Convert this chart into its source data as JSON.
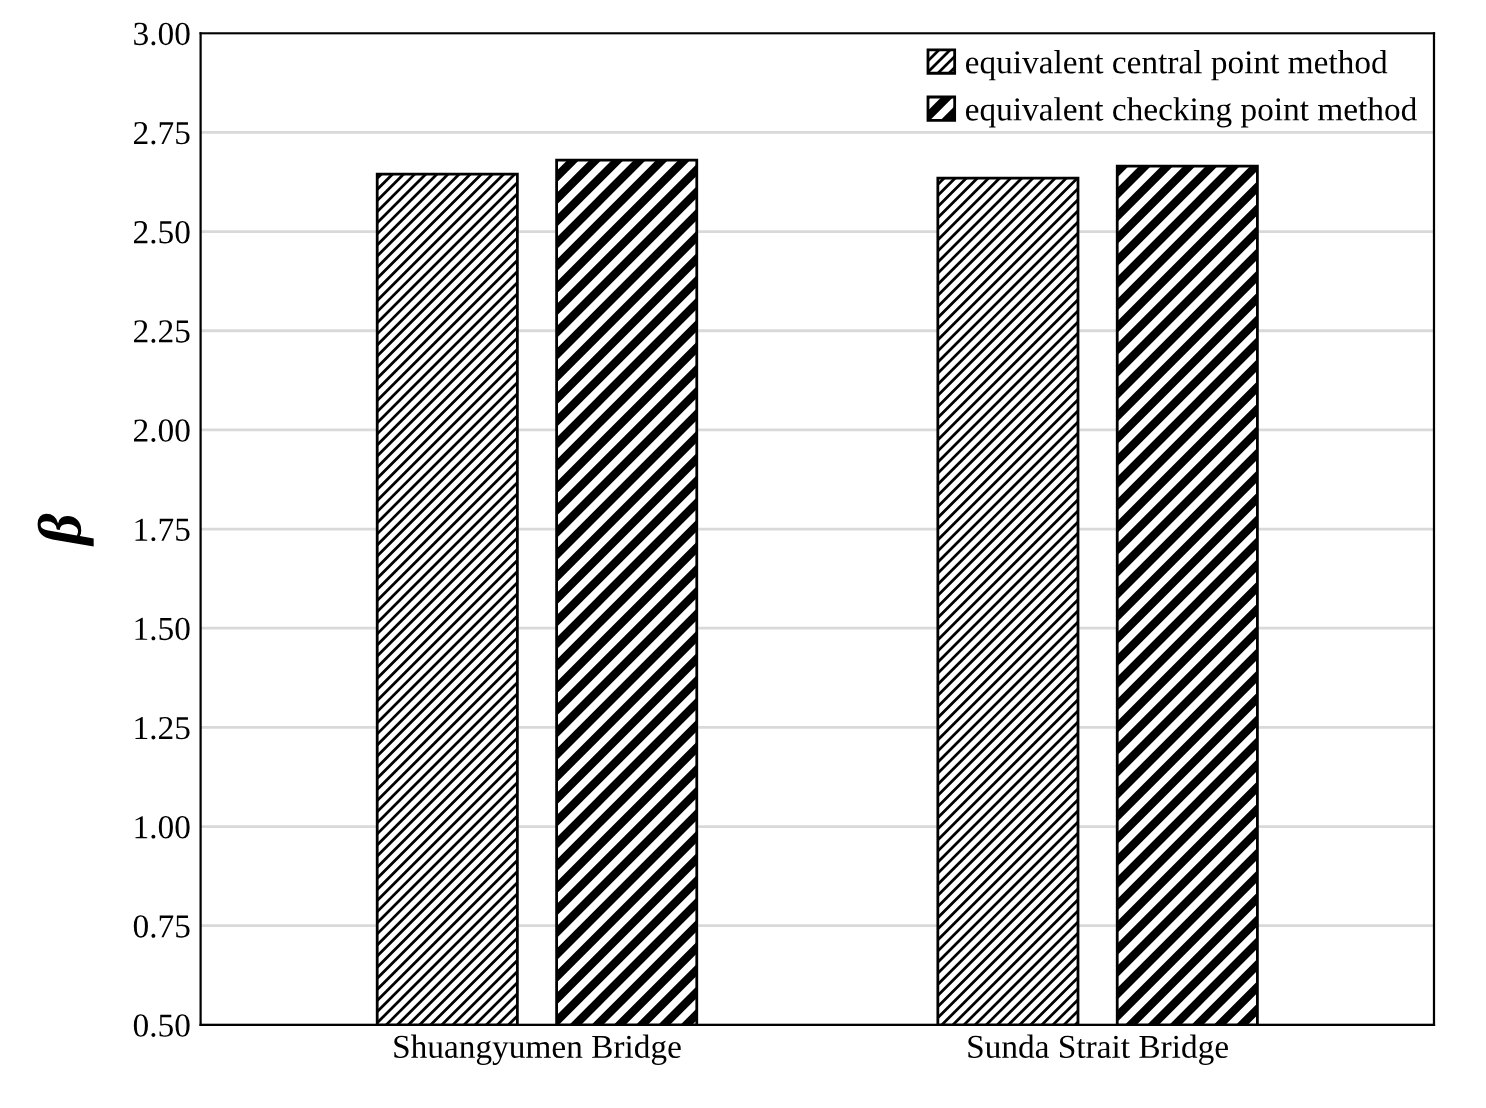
{
  "chart_data": {
    "type": "bar",
    "ylabel": "β",
    "categories": [
      "Shuangyumen Bridge",
      "Sunda Strait Bridge"
    ],
    "series": [
      {
        "name": "equivalent central point method",
        "color": "#000000",
        "values": [
          2.645,
          2.635
        ]
      },
      {
        "name": "equivalent checking point method",
        "color": "#000000",
        "values": [
          2.68,
          2.665
        ]
      }
    ],
    "ylim": [
      0.5,
      3.0
    ],
    "yticks": [
      {
        "value": 0.5,
        "label": "0.50"
      },
      {
        "value": 0.75,
        "label": "0.75"
      },
      {
        "value": 1.0,
        "label": "1.00"
      },
      {
        "value": 1.25,
        "label": "1.25"
      },
      {
        "value": 1.5,
        "label": "1.50"
      },
      {
        "value": 1.75,
        "label": "1.75"
      },
      {
        "value": 2.0,
        "label": "2.00"
      },
      {
        "value": 2.25,
        "label": "2.25"
      },
      {
        "value": 2.5,
        "label": "2.50"
      },
      {
        "value": 2.75,
        "label": "2.75"
      },
      {
        "value": 3.0,
        "label": "3.00"
      }
    ],
    "grid": "y",
    "legend": "top right"
  }
}
